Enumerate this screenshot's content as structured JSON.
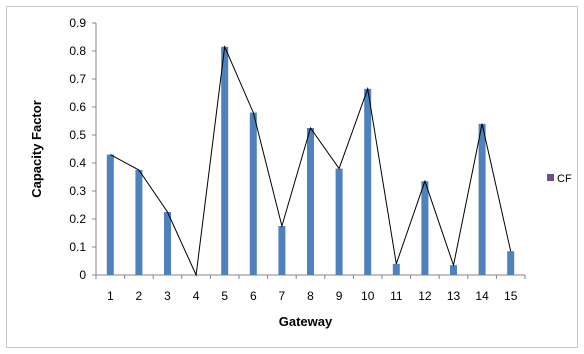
{
  "chart_data": {
    "type": "bar",
    "xlabel": "Gateway",
    "ylabel": "Capacity Factor",
    "ylim": [
      0,
      0.9
    ],
    "yticks": [
      "0",
      "0.1",
      "0.2",
      "0.3",
      "0.4",
      "0.5",
      "0.6",
      "0.7",
      "0.8",
      "0.9"
    ],
    "categories": [
      "1",
      "2",
      "3",
      "4",
      "5",
      "6",
      "7",
      "8",
      "9",
      "10",
      "11",
      "12",
      "13",
      "14",
      "15"
    ],
    "series": [
      {
        "name": "CF",
        "values": [
          0.43,
          0.375,
          0.225,
          0.0,
          0.815,
          0.58,
          0.175,
          0.525,
          0.38,
          0.665,
          0.04,
          0.335,
          0.035,
          0.54,
          0.085
        ]
      }
    ],
    "overlay_line": true,
    "legend_position": "right",
    "grid": false,
    "colors": {
      "bar": "#4f81bd",
      "line": "#000000",
      "legend_marker": "#6b4e8a"
    }
  }
}
